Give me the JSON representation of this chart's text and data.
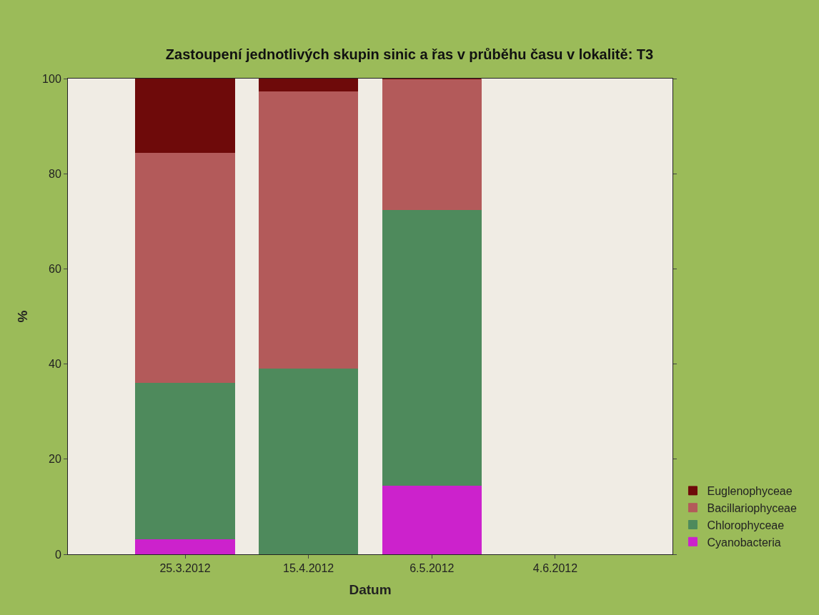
{
  "chart_data": {
    "type": "bar",
    "stacked": true,
    "title": "Zastoupení jednotlivých skupin sinic a řas v průběhu času v lokalitě: T3",
    "xlabel": "Datum",
    "ylabel": "%",
    "categories": [
      "25.3.2012",
      "15.4.2012",
      "6.5.2012",
      "4.6.2012"
    ],
    "series": [
      {
        "name": "Cyanobacteria",
        "color": "#cc22cc",
        "values": [
          3.2,
          0,
          14.5,
          null
        ]
      },
      {
        "name": "Chlorophyceae",
        "color": "#4e8a5c",
        "values": [
          32.9,
          39.1,
          57.9,
          null
        ]
      },
      {
        "name": "Bacillariophyceae",
        "color": "#b35a5a",
        "values": [
          48.4,
          58.2,
          27.6,
          null
        ]
      },
      {
        "name": "Euglenophyceae",
        "color": "#6e0a0a",
        "values": [
          15.5,
          2.7,
          0,
          null
        ]
      }
    ],
    "ylim": [
      0,
      100
    ],
    "yticks": [
      0,
      20,
      40,
      60,
      80,
      100
    ],
    "grid": false,
    "legend": "bottom right"
  }
}
